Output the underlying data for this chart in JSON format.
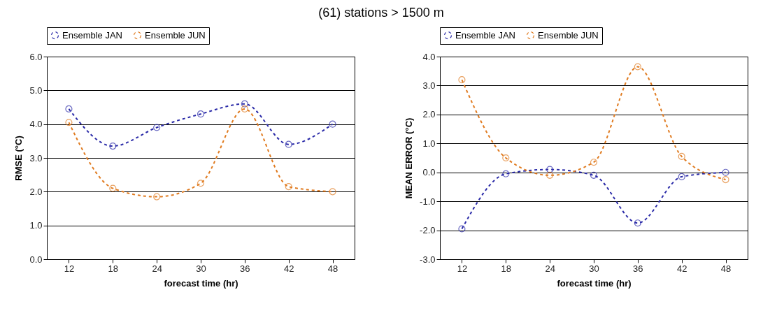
{
  "chart_data": [
    {
      "type": "line",
      "title": "(61) stations > 1500 m",
      "xlabel": "forecast time (hr)",
      "ylabel": "RMSE (°C)",
      "categories": [
        "12",
        "18",
        "24",
        "30",
        "36",
        "42",
        "48"
      ],
      "series": [
        {
          "name": "Ensemble JAN",
          "color": "#2a2aa8",
          "values": [
            4.45,
            3.35,
            3.9,
            4.3,
            4.6,
            3.4,
            4.0
          ]
        },
        {
          "name": "Ensemble JUN",
          "color": "#e07b20",
          "values": [
            4.05,
            2.1,
            1.85,
            2.25,
            4.45,
            2.15,
            2.0
          ]
        }
      ],
      "ylim": [
        0,
        6
      ],
      "yticks": [
        {
          "value": 0,
          "label": "0.0"
        },
        {
          "value": 1,
          "label": "1.0"
        },
        {
          "value": 2,
          "label": "2.0"
        },
        {
          "value": 3,
          "label": "3.0"
        },
        {
          "value": 4,
          "label": "4.0"
        },
        {
          "value": 5,
          "label": "5.0"
        },
        {
          "value": 6,
          "label": "6.0"
        }
      ],
      "grid": "y",
      "legend": "top",
      "marker": "circle",
      "line_style": "dashed"
    },
    {
      "type": "line",
      "xlabel": "forecast time (hr)",
      "ylabel": "MEAN ERROR (°C)",
      "categories": [
        "12",
        "18",
        "24",
        "30",
        "36",
        "42",
        "48"
      ],
      "series": [
        {
          "name": "Ensemble JAN",
          "color": "#2a2aa8",
          "values": [
            -1.95,
            -0.05,
            0.1,
            -0.1,
            -1.75,
            -0.15,
            0.0
          ]
        },
        {
          "name": "Ensemble JUN",
          "color": "#e07b20",
          "values": [
            3.2,
            0.5,
            -0.1,
            0.35,
            3.65,
            0.55,
            -0.25
          ]
        }
      ],
      "ylim": [
        -3,
        4
      ],
      "yticks": [
        {
          "value": -3,
          "label": "-3.0"
        },
        {
          "value": -2,
          "label": "-2.0"
        },
        {
          "value": -1,
          "label": "-1.0"
        },
        {
          "value": 0,
          "label": "0.0"
        },
        {
          "value": 1,
          "label": "1.0"
        },
        {
          "value": 2,
          "label": "2.0"
        },
        {
          "value": 3,
          "label": "3.0"
        },
        {
          "value": 4,
          "label": "4.0"
        }
      ],
      "grid": "y",
      "legend": "top",
      "marker": "circle",
      "line_style": "dashed"
    }
  ]
}
